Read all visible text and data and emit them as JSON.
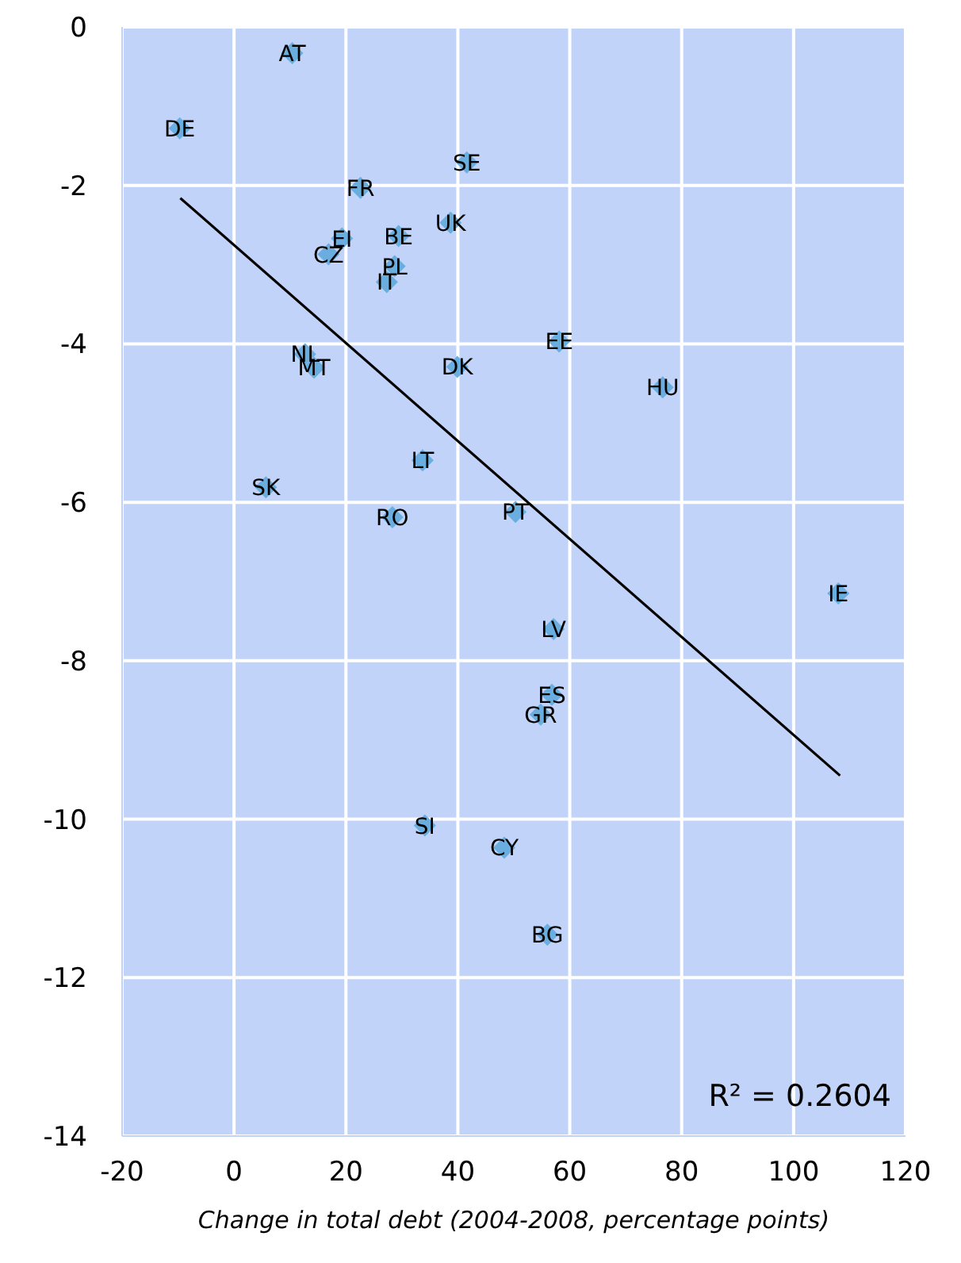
{
  "chart_data": {
    "type": "scatter",
    "xlabel": "Change in total debt (2004-2008, percentage points)",
    "xlim": [
      -20,
      120
    ],
    "xticks": [
      -20,
      0,
      20,
      40,
      60,
      80,
      100,
      120
    ],
    "ylim": [
      -14,
      0
    ],
    "yticks": [
      -14,
      -12,
      -10,
      -8,
      -6,
      -4,
      -2,
      0
    ],
    "grid": true,
    "x": [
      10.4,
      -9.7,
      41.6,
      22.6,
      38.7,
      29.4,
      19.3,
      16.9,
      28.7,
      27.3,
      58.1,
      12.7,
      14.3,
      39.9,
      76.6,
      33.7,
      5.7,
      28.3,
      50.3,
      108.0,
      57.1,
      56.8,
      54.8,
      34.1,
      48.3,
      56.0
    ],
    "series": [
      {
        "color": "#6aaee0",
        "marker": "diamond",
        "values": [
          -0.33,
          -1.28,
          -1.71,
          -2.03,
          -2.47,
          -2.64,
          -2.67,
          -2.87,
          -3.02,
          -3.22,
          -3.97,
          -4.13,
          -4.3,
          -4.29,
          -4.55,
          -5.47,
          -5.81,
          -6.19,
          -6.12,
          -7.15,
          -7.6,
          -8.43,
          -8.68,
          -10.08,
          -10.36,
          -11.46
        ]
      },
      {
        "type": "line",
        "color": "#000000",
        "x": [
          -9.6,
          108.3
        ],
        "values": [
          -2.16,
          -9.45
        ]
      }
    ],
    "annotations": [
      {
        "text": "AT",
        "x": 10.4,
        "y": -0.33
      },
      {
        "text": "DE",
        "x": -9.7,
        "y": -1.28
      },
      {
        "text": "SE",
        "x": 41.6,
        "y": -1.71
      },
      {
        "text": "FR",
        "x": 22.6,
        "y": -2.03
      },
      {
        "text": "UK",
        "x": 38.7,
        "y": -2.47
      },
      {
        "text": "BE",
        "x": 29.4,
        "y": -2.64
      },
      {
        "text": "EI",
        "x": 19.3,
        "y": -2.67
      },
      {
        "text": "CZ",
        "x": 16.9,
        "y": -2.87
      },
      {
        "text": "PL",
        "x": 28.7,
        "y": -3.02
      },
      {
        "text": "IT",
        "x": 27.3,
        "y": -3.22
      },
      {
        "text": "EE",
        "x": 58.1,
        "y": -3.97
      },
      {
        "text": "NL",
        "x": 12.7,
        "y": -4.13
      },
      {
        "text": "MT",
        "x": 14.3,
        "y": -4.3
      },
      {
        "text": "DK",
        "x": 39.9,
        "y": -4.29
      },
      {
        "text": "HU",
        "x": 76.6,
        "y": -4.55
      },
      {
        "text": "LT",
        "x": 33.7,
        "y": -5.47
      },
      {
        "text": "SK",
        "x": 5.7,
        "y": -5.81
      },
      {
        "text": "RO",
        "x": 28.3,
        "y": -6.19
      },
      {
        "text": "PT",
        "x": 50.3,
        "y": -6.12
      },
      {
        "text": "IE",
        "x": 108.0,
        "y": -7.15
      },
      {
        "text": "LV",
        "x": 57.1,
        "y": -7.6
      },
      {
        "text": "ES",
        "x": 56.8,
        "y": -8.43
      },
      {
        "text": "GR",
        "x": 54.8,
        "y": -8.68
      },
      {
        "text": "SI",
        "x": 34.1,
        "y": -10.08
      },
      {
        "text": "CY",
        "x": 48.3,
        "y": -10.36
      },
      {
        "text": "BG",
        "x": 56.0,
        "y": -11.46
      },
      "R² = 0.2604"
    ]
  }
}
